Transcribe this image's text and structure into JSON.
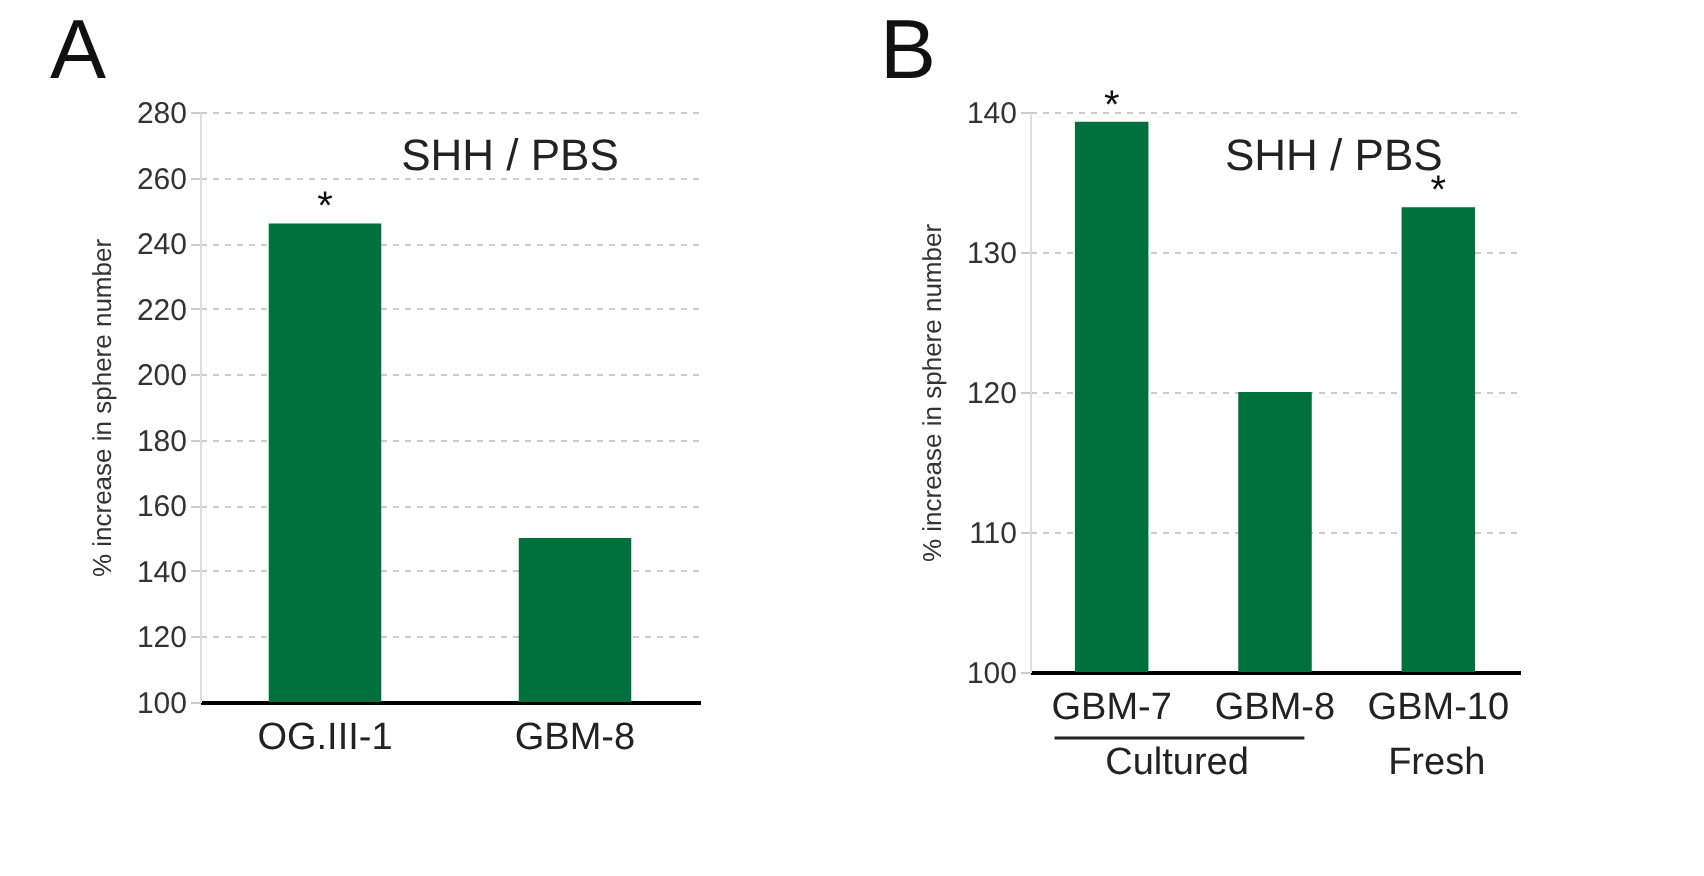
{
  "chart_data": [
    {
      "type": "bar",
      "title": "SHH / PBS",
      "ylabel": "% increase in sphere number",
      "categories": [
        "OG.III-1",
        "GBM-8"
      ],
      "values": [
        246,
        150
      ],
      "color": "#00703c",
      "ylim": [
        100,
        280
      ],
      "yticks": [
        100,
        120,
        140,
        160,
        180,
        200,
        220,
        240,
        260,
        280
      ],
      "grid": "y",
      "annotations": [
        "A",
        {
          "text": "*",
          "x": "OG.III-1",
          "y": 246
        }
      ]
    },
    {
      "type": "bar",
      "title": "SHH / PBS",
      "ylabel": "% increase in sphere number",
      "categories": [
        "GBM-7",
        "GBM-8",
        "GBM-10"
      ],
      "values": [
        139.3,
        120,
        133.2
      ],
      "color": "#00703c",
      "ylim": [
        100,
        140
      ],
      "yticks": [
        100,
        110,
        120,
        130,
        140
      ],
      "grid": "y",
      "annotations": [
        "B",
        {
          "text": "*",
          "x": "GBM-7",
          "y": 139.3
        },
        {
          "text": "*",
          "x": "GBM-10",
          "y": 133.2
        },
        "Cultured",
        "Fresh"
      ]
    }
  ]
}
